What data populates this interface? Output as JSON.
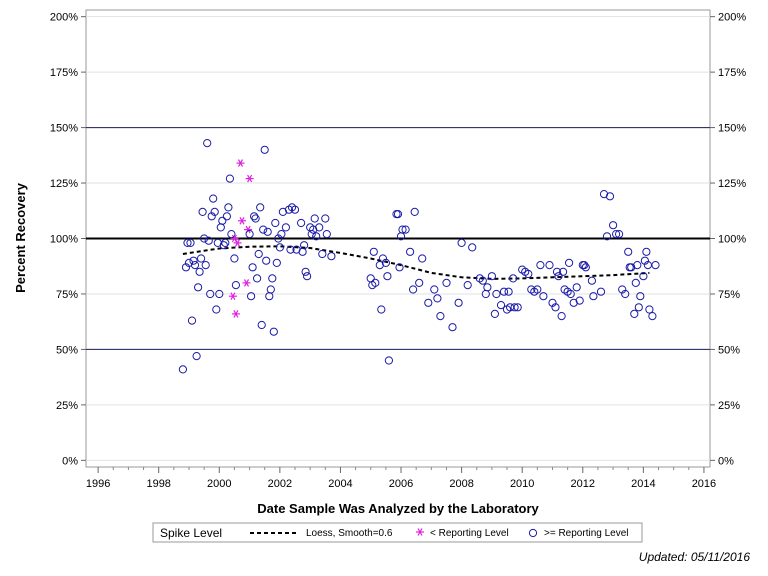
{
  "chart_data": {
    "type": "scatter",
    "title": "",
    "xlabel": "Date Sample Was Analyzed by the Laboratory",
    "ylabel": "Percent Recovery",
    "xlim": [
      1995.6,
      2016.2
    ],
    "ylim": [
      -0.03,
      2.03
    ],
    "x_ticks": [
      1996,
      1998,
      2000,
      2002,
      2004,
      2006,
      2008,
      2010,
      2012,
      2014,
      2016
    ],
    "x_tick_labels": [
      "1996",
      "1998",
      "2000",
      "2002",
      "2004",
      "2006",
      "2008",
      "2010",
      "2012",
      "2014",
      "2016"
    ],
    "y_ticks": [
      0,
      0.25,
      0.5,
      0.75,
      1.0,
      1.25,
      1.5,
      1.75,
      2.0
    ],
    "y_tick_labels": [
      "0%",
      "25%",
      "50%",
      "75%",
      "100%",
      "125%",
      "150%",
      "175%",
      "200%"
    ],
    "reference_lines": [
      {
        "y": 1.0,
        "style": "thick",
        "color": "#000000"
      },
      {
        "y": 0.5,
        "style": "thin",
        "color": "#1c1c5e"
      },
      {
        "y": 1.5,
        "style": "thin",
        "color": "#1c1c5e"
      }
    ],
    "grid": true,
    "legend_position": "bottom",
    "legend": {
      "title": "Spike Level",
      "entries": [
        {
          "label": "Loess, Smooth=0.6",
          "marker": "dashed-line"
        },
        {
          "label": "< Reporting Level",
          "marker": "asterisk"
        },
        {
          "label": ">= Reporting Level",
          "marker": "circle"
        }
      ]
    },
    "series": [
      {
        "name": "Loess, Smooth=0.6",
        "kind": "line",
        "color": "#000000",
        "points": [
          [
            1998.8,
            0.93
          ],
          [
            1999.5,
            0.945
          ],
          [
            2000.0,
            0.955
          ],
          [
            2001.0,
            0.963
          ],
          [
            2002.0,
            0.965
          ],
          [
            2003.0,
            0.957
          ],
          [
            2004.0,
            0.935
          ],
          [
            2005.0,
            0.91
          ],
          [
            2006.0,
            0.88
          ],
          [
            2007.0,
            0.845
          ],
          [
            2008.0,
            0.825
          ],
          [
            2009.0,
            0.818
          ],
          [
            2010.0,
            0.82
          ],
          [
            2011.0,
            0.825
          ],
          [
            2012.0,
            0.83
          ],
          [
            2013.0,
            0.835
          ],
          [
            2014.2,
            0.845
          ]
        ]
      },
      {
        "name": "< Reporting Level",
        "kind": "asterisk",
        "color": "#e020e0",
        "points": [
          [
            2000.45,
            0.74
          ],
          [
            2000.5,
            1.0
          ],
          [
            2000.55,
            0.66
          ],
          [
            2000.6,
            0.98
          ],
          [
            2000.7,
            1.34
          ],
          [
            2000.75,
            1.08
          ],
          [
            2000.9,
            0.8
          ],
          [
            2000.95,
            1.04
          ],
          [
            2001.0,
            1.27
          ]
        ]
      },
      {
        "name": ">= Reporting Level",
        "kind": "circle",
        "color": "#1a1aa8",
        "points": [
          [
            1998.8,
            0.41
          ],
          [
            1998.9,
            0.87
          ],
          [
            1998.95,
            0.98
          ],
          [
            1999.0,
            0.89
          ],
          [
            1999.05,
            0.98
          ],
          [
            1999.1,
            0.63
          ],
          [
            1999.15,
            0.9
          ],
          [
            1999.2,
            0.88
          ],
          [
            1999.25,
            0.47
          ],
          [
            1999.3,
            0.78
          ],
          [
            1999.35,
            0.85
          ],
          [
            1999.4,
            0.91
          ],
          [
            1999.45,
            1.12
          ],
          [
            1999.5,
            1.0
          ],
          [
            1999.55,
            0.88
          ],
          [
            1999.6,
            1.43
          ],
          [
            1999.65,
            0.99
          ],
          [
            1999.7,
            0.75
          ],
          [
            1999.75,
            1.1
          ],
          [
            1999.8,
            1.18
          ],
          [
            1999.85,
            1.12
          ],
          [
            1999.9,
            0.68
          ],
          [
            1999.95,
            0.98
          ],
          [
            2000.0,
            0.75
          ],
          [
            2000.05,
            1.05
          ],
          [
            2000.1,
            1.08
          ],
          [
            2000.15,
            0.97
          ],
          [
            2000.2,
            0.98
          ],
          [
            2000.25,
            1.1
          ],
          [
            2000.3,
            1.14
          ],
          [
            2000.35,
            1.27
          ],
          [
            2000.4,
            1.02
          ],
          [
            2000.5,
            0.91
          ],
          [
            2000.55,
            0.79
          ],
          [
            2001.0,
            1.02
          ],
          [
            2001.05,
            0.74
          ],
          [
            2001.1,
            0.87
          ],
          [
            2001.15,
            1.1
          ],
          [
            2001.2,
            1.09
          ],
          [
            2001.25,
            0.82
          ],
          [
            2001.3,
            0.93
          ],
          [
            2001.35,
            1.14
          ],
          [
            2001.4,
            0.61
          ],
          [
            2001.45,
            1.04
          ],
          [
            2001.5,
            1.4
          ],
          [
            2001.55,
            0.9
          ],
          [
            2001.6,
            1.03
          ],
          [
            2001.65,
            0.74
          ],
          [
            2001.7,
            0.77
          ],
          [
            2001.75,
            0.82
          ],
          [
            2001.8,
            0.58
          ],
          [
            2001.85,
            1.07
          ],
          [
            2001.9,
            0.89
          ],
          [
            2001.95,
            1.0
          ],
          [
            2002.0,
            0.96
          ],
          [
            2002.05,
            1.02
          ],
          [
            2002.1,
            1.12
          ],
          [
            2002.2,
            1.05
          ],
          [
            2002.3,
            1.13
          ],
          [
            2002.35,
            0.95
          ],
          [
            2002.4,
            1.14
          ],
          [
            2002.5,
            1.13
          ],
          [
            2002.55,
            0.95
          ],
          [
            2002.7,
            1.07
          ],
          [
            2002.75,
            0.94
          ],
          [
            2002.8,
            0.97
          ],
          [
            2002.85,
            0.85
          ],
          [
            2002.9,
            0.83
          ],
          [
            2003.0,
            1.05
          ],
          [
            2003.05,
            1.02
          ],
          [
            2003.1,
            1.04
          ],
          [
            2003.15,
            1.09
          ],
          [
            2003.2,
            1.01
          ],
          [
            2003.3,
            1.05
          ],
          [
            2003.4,
            0.93
          ],
          [
            2003.5,
            1.09
          ],
          [
            2003.55,
            1.02
          ],
          [
            2003.7,
            0.92
          ],
          [
            2005.0,
            0.82
          ],
          [
            2005.05,
            0.79
          ],
          [
            2005.1,
            0.94
          ],
          [
            2005.15,
            0.8
          ],
          [
            2005.3,
            0.88
          ],
          [
            2005.35,
            0.68
          ],
          [
            2005.4,
            0.91
          ],
          [
            2005.5,
            0.89
          ],
          [
            2005.55,
            0.83
          ],
          [
            2005.6,
            0.45
          ],
          [
            2005.85,
            1.11
          ],
          [
            2005.9,
            1.11
          ],
          [
            2005.95,
            0.87
          ],
          [
            2006.0,
            1.01
          ],
          [
            2006.05,
            1.04
          ],
          [
            2006.15,
            1.04
          ],
          [
            2006.3,
            0.94
          ],
          [
            2006.4,
            0.77
          ],
          [
            2006.45,
            1.12
          ],
          [
            2006.6,
            0.8
          ],
          [
            2006.7,
            0.91
          ],
          [
            2006.9,
            0.71
          ],
          [
            2007.1,
            0.77
          ],
          [
            2007.2,
            0.73
          ],
          [
            2007.3,
            0.65
          ],
          [
            2007.5,
            0.8
          ],
          [
            2007.7,
            0.6
          ],
          [
            2007.9,
            0.71
          ],
          [
            2008.0,
            0.98
          ],
          [
            2008.2,
            0.79
          ],
          [
            2008.35,
            0.96
          ],
          [
            2008.6,
            0.82
          ],
          [
            2008.7,
            0.81
          ],
          [
            2008.8,
            0.75
          ],
          [
            2008.85,
            0.78
          ],
          [
            2009.0,
            0.83
          ],
          [
            2009.1,
            0.66
          ],
          [
            2009.15,
            0.75
          ],
          [
            2009.3,
            0.7
          ],
          [
            2009.4,
            0.76
          ],
          [
            2009.5,
            0.68
          ],
          [
            2009.55,
            0.76
          ],
          [
            2009.6,
            0.69
          ],
          [
            2009.7,
            0.82
          ],
          [
            2009.75,
            0.69
          ],
          [
            2009.85,
            0.69
          ],
          [
            2010.0,
            0.86
          ],
          [
            2010.1,
            0.85
          ],
          [
            2010.2,
            0.84
          ],
          [
            2010.3,
            0.77
          ],
          [
            2010.4,
            0.76
          ],
          [
            2010.5,
            0.77
          ],
          [
            2010.6,
            0.88
          ],
          [
            2010.7,
            0.74
          ],
          [
            2010.9,
            0.88
          ],
          [
            2011.0,
            0.71
          ],
          [
            2011.1,
            0.69
          ],
          [
            2011.15,
            0.85
          ],
          [
            2011.2,
            0.83
          ],
          [
            2011.3,
            0.65
          ],
          [
            2011.35,
            0.85
          ],
          [
            2011.4,
            0.77
          ],
          [
            2011.5,
            0.76
          ],
          [
            2011.55,
            0.89
          ],
          [
            2011.6,
            0.75
          ],
          [
            2011.7,
            0.71
          ],
          [
            2011.8,
            0.78
          ],
          [
            2011.9,
            0.72
          ],
          [
            2012.0,
            0.88
          ],
          [
            2012.05,
            0.88
          ],
          [
            2012.1,
            0.87
          ],
          [
            2012.3,
            0.81
          ],
          [
            2012.35,
            0.74
          ],
          [
            2012.6,
            0.76
          ],
          [
            2012.7,
            1.2
          ],
          [
            2012.8,
            1.01
          ],
          [
            2012.9,
            1.19
          ],
          [
            2013.0,
            1.06
          ],
          [
            2013.1,
            1.02
          ],
          [
            2013.2,
            1.02
          ],
          [
            2013.3,
            0.77
          ],
          [
            2013.4,
            0.75
          ],
          [
            2013.5,
            0.94
          ],
          [
            2013.55,
            0.87
          ],
          [
            2013.6,
            0.87
          ],
          [
            2013.7,
            0.66
          ],
          [
            2013.75,
            0.8
          ],
          [
            2013.8,
            0.88
          ],
          [
            2013.85,
            0.69
          ],
          [
            2013.9,
            0.74
          ],
          [
            2014.0,
            0.83
          ],
          [
            2014.05,
            0.9
          ],
          [
            2014.1,
            0.94
          ],
          [
            2014.15,
            0.88
          ],
          [
            2014.2,
            0.68
          ],
          [
            2014.3,
            0.65
          ],
          [
            2014.4,
            0.88
          ]
        ]
      }
    ],
    "footnote": "Updated: 05/11/2016"
  }
}
